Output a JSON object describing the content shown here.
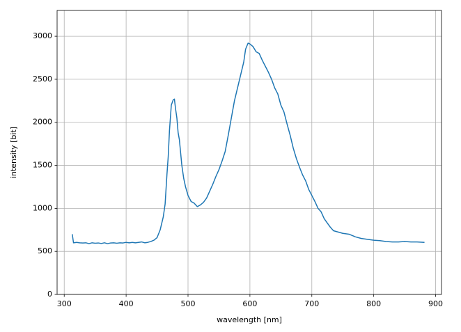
{
  "chart_data": {
    "type": "line",
    "xlabel": "wavelength [nm]",
    "ylabel": "intensity [bit]",
    "x": [
      313,
      315,
      320,
      325,
      330,
      335,
      340,
      345,
      350,
      355,
      360,
      365,
      370,
      375,
      380,
      385,
      390,
      395,
      400,
      405,
      410,
      415,
      420,
      425,
      430,
      435,
      440,
      445,
      450,
      455,
      460,
      463,
      466,
      468,
      470,
      473,
      476,
      478,
      480,
      482,
      484,
      486,
      488,
      490,
      493,
      496,
      500,
      505,
      510,
      515,
      520,
      525,
      530,
      535,
      540,
      545,
      550,
      555,
      560,
      565,
      570,
      575,
      580,
      585,
      590,
      593,
      597,
      600,
      605,
      610,
      615,
      620,
      625,
      630,
      635,
      640,
      645,
      650,
      655,
      660,
      665,
      670,
      675,
      680,
      685,
      690,
      695,
      700,
      705,
      710,
      715,
      720,
      725,
      730,
      735,
      740,
      745,
      750,
      760,
      770,
      780,
      790,
      800,
      810,
      820,
      830,
      840,
      850,
      860,
      870,
      882
    ],
    "values": [
      700,
      600,
      605,
      600,
      598,
      600,
      590,
      600,
      595,
      598,
      592,
      600,
      590,
      598,
      600,
      595,
      600,
      598,
      605,
      600,
      605,
      600,
      605,
      610,
      600,
      605,
      615,
      630,
      660,
      750,
      900,
      1050,
      1400,
      1600,
      1900,
      2200,
      2260,
      2270,
      2150,
      2050,
      1880,
      1800,
      1650,
      1500,
      1350,
      1250,
      1150,
      1080,
      1060,
      1020,
      1040,
      1070,
      1120,
      1200,
      1280,
      1370,
      1450,
      1550,
      1660,
      1850,
      2050,
      2250,
      2400,
      2550,
      2700,
      2850,
      2920,
      2910,
      2880,
      2820,
      2800,
      2720,
      2650,
      2580,
      2500,
      2400,
      2330,
      2200,
      2120,
      1980,
      1850,
      1700,
      1580,
      1480,
      1390,
      1320,
      1220,
      1150,
      1080,
      1000,
      960,
      880,
      830,
      780,
      740,
      730,
      720,
      710,
      700,
      670,
      650,
      640,
      630,
      625,
      615,
      610,
      610,
      615,
      610,
      610,
      605
    ],
    "color": "#1f77b4",
    "xlim": [
      288.5,
      909.5
    ],
    "xticks": [
      300,
      400,
      500,
      600,
      700,
      800,
      900
    ],
    "ylim": [
      0,
      3300
    ],
    "yticks": [
      0,
      500,
      1000,
      1500,
      2000,
      2500,
      3000
    ],
    "grid": true
  }
}
